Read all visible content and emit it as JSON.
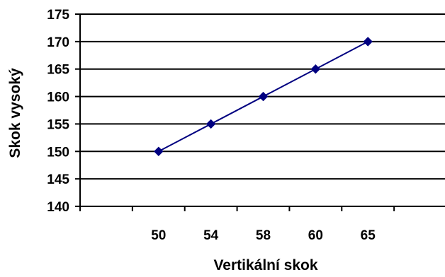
{
  "chart_data": {
    "type": "line",
    "categories": [
      "50",
      "54",
      "58",
      "60",
      "65"
    ],
    "series": [
      {
        "values": [
          150,
          155,
          160,
          165,
          170
        ]
      }
    ],
    "title": "",
    "xlabel": "Vertikální skok",
    "ylabel": "Skok vysoký",
    "ylim": [
      140,
      175
    ],
    "yticks": [
      140,
      145,
      150,
      155,
      160,
      165,
      170,
      175
    ],
    "grid": true,
    "legend": "none"
  },
  "colors": {
    "series": "#000080",
    "grid": "#000000",
    "axis": "#000000"
  }
}
